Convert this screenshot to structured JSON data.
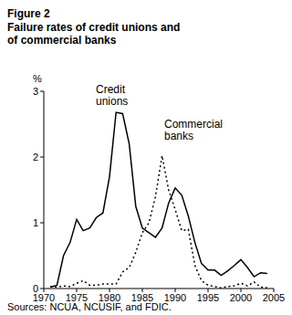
{
  "chart_data": {
    "type": "line",
    "title": "Figure 2",
    "subtitle": "Failure rates of credit unions and of commercial banks",
    "y_label": "%",
    "source": "Sources: NCUA, NCUSIF, and FDIC.",
    "x": [
      1971,
      1972,
      1973,
      1974,
      1975,
      1976,
      1977,
      1978,
      1979,
      1980,
      1981,
      1982,
      1983,
      1984,
      1985,
      1986,
      1987,
      1988,
      1989,
      1990,
      1991,
      1992,
      1993,
      1994,
      1995,
      1996,
      1997,
      1998,
      1999,
      2000,
      2001,
      2002,
      2003,
      2004
    ],
    "series": [
      {
        "name": "Credit unions",
        "color": "#000000",
        "line_style": "solid",
        "values": [
          0.02,
          0.05,
          0.5,
          0.7,
          1.05,
          0.88,
          0.92,
          1.08,
          1.15,
          1.7,
          2.68,
          2.66,
          2.2,
          1.25,
          0.92,
          0.85,
          0.78,
          0.92,
          1.3,
          1.53,
          1.42,
          1.1,
          0.7,
          0.38,
          0.28,
          0.28,
          0.2,
          0.27,
          0.35,
          0.44,
          0.32,
          0.18,
          0.24,
          0.23
        ]
      },
      {
        "name": "Commercial banks",
        "color": "#000000",
        "line_style": "dotted",
        "values": [
          0.03,
          0.02,
          0.04,
          0.03,
          0.08,
          0.12,
          0.05,
          0.05,
          0.07,
          0.07,
          0.07,
          0.25,
          0.32,
          0.55,
          0.85,
          1.0,
          1.4,
          2.02,
          1.5,
          1.2,
          0.88,
          0.9,
          0.35,
          0.12,
          0.05,
          0.03,
          0.01,
          0.03,
          0.04,
          0.08,
          0.04,
          0.1,
          0.02,
          0.01
        ]
      }
    ],
    "xlim": [
      1970,
      2005
    ],
    "xticks": [
      1970,
      1975,
      1980,
      1985,
      1990,
      1995,
      2000,
      2005
    ],
    "ylim": [
      0,
      3
    ],
    "yticks": [
      0,
      1,
      2,
      3
    ],
    "grid": false
  }
}
